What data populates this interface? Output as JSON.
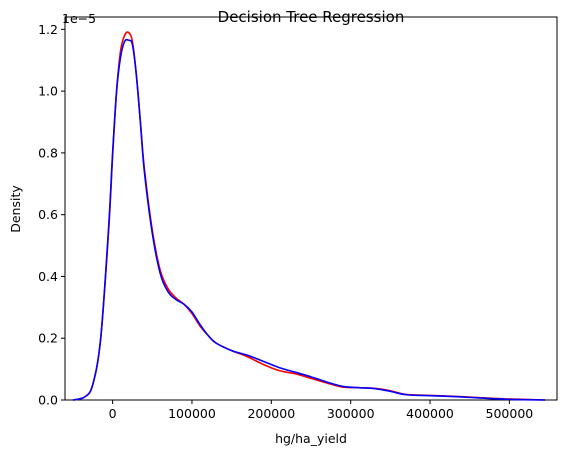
{
  "chart_data": {
    "type": "line",
    "title": "Decision Tree Regression",
    "xlabel": "hg/ha_yield",
    "ylabel": "Density",
    "y_offset_label": "1e−5",
    "xlim": [
      -60000,
      560000
    ],
    "ylim": [
      0,
      1.24
    ],
    "y_units_multiplier": 1e-05,
    "grid": false,
    "legend": "none",
    "x_ticks": [
      {
        "value": 0,
        "label": "0"
      },
      {
        "value": 100000,
        "label": "100000"
      },
      {
        "value": 200000,
        "label": "200000"
      },
      {
        "value": 300000,
        "label": "300000"
      },
      {
        "value": 400000,
        "label": "400000"
      },
      {
        "value": 500000,
        "label": "500000"
      }
    ],
    "y_ticks": [
      {
        "value": 0.0,
        "label": "0.0"
      },
      {
        "value": 0.2,
        "label": "0.2"
      },
      {
        "value": 0.4,
        "label": "0.4"
      },
      {
        "value": 0.6,
        "label": "0.6"
      },
      {
        "value": 0.8,
        "label": "0.8"
      },
      {
        "value": 1.0,
        "label": "1.0"
      },
      {
        "value": 1.2,
        "label": "1.2"
      }
    ],
    "series": [
      {
        "color": "#ff0000",
        "x": [
          -50000,
          -35000,
          -25000,
          -15000,
          -5000,
          0,
          5000,
          10000,
          15000,
          20000,
          25000,
          30000,
          35000,
          40000,
          50000,
          60000,
          70000,
          80000,
          90000,
          100000,
          110000,
          120000,
          130000,
          150000,
          170000,
          190000,
          210000,
          230000,
          250000,
          270000,
          290000,
          310000,
          330000,
          350000,
          370000,
          400000,
          430000,
          460000,
          490000,
          520000,
          545000
        ],
        "y": [
          0.0,
          0.01,
          0.05,
          0.2,
          0.55,
          0.79,
          1.0,
          1.13,
          1.18,
          1.19,
          1.16,
          1.05,
          0.9,
          0.75,
          0.55,
          0.42,
          0.36,
          0.33,
          0.31,
          0.28,
          0.24,
          0.21,
          0.185,
          0.16,
          0.14,
          0.115,
          0.095,
          0.085,
          0.07,
          0.055,
          0.042,
          0.04,
          0.038,
          0.03,
          0.018,
          0.015,
          0.012,
          0.008,
          0.004,
          0.002,
          0.0
        ]
      },
      {
        "color": "#0000ff",
        "x": [
          -50000,
          -35000,
          -25000,
          -15000,
          -5000,
          0,
          5000,
          10000,
          15000,
          20000,
          25000,
          30000,
          35000,
          40000,
          50000,
          60000,
          70000,
          80000,
          90000,
          100000,
          110000,
          120000,
          130000,
          150000,
          170000,
          190000,
          210000,
          230000,
          250000,
          270000,
          290000,
          310000,
          330000,
          350000,
          370000,
          400000,
          430000,
          460000,
          490000,
          520000,
          545000
        ],
        "y": [
          0.0,
          0.01,
          0.05,
          0.2,
          0.56,
          0.8,
          1.0,
          1.11,
          1.16,
          1.165,
          1.15,
          1.05,
          0.9,
          0.74,
          0.54,
          0.41,
          0.35,
          0.325,
          0.31,
          0.285,
          0.245,
          0.21,
          0.185,
          0.16,
          0.145,
          0.125,
          0.105,
          0.09,
          0.075,
          0.058,
          0.044,
          0.04,
          0.037,
          0.028,
          0.017,
          0.014,
          0.011,
          0.007,
          0.003,
          0.001,
          0.0
        ]
      }
    ]
  }
}
